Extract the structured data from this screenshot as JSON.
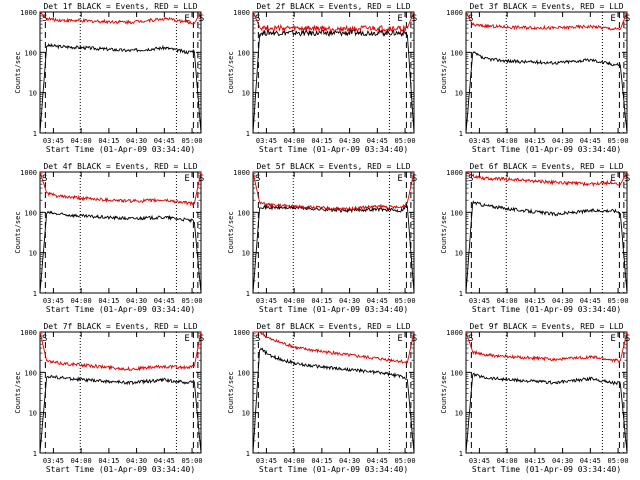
{
  "figure": {
    "xlabel": "Start Time (01-Apr-09 03:34:40)",
    "ylabel": "Counts/sec",
    "x_ticks": [
      "03:45",
      "04:00",
      "04:15",
      "04:30",
      "04:45",
      "05:00"
    ],
    "y_ticks": [
      "1",
      "10",
      "100",
      "1000"
    ],
    "colors": {
      "events": "#000000",
      "lld": "#e00000"
    }
  },
  "chart_data": [
    {
      "type": "line",
      "title": "Det 1f BLACK = Events, RED = LLD",
      "x_range_min": [
        0,
        36
      ],
      "y_range": [
        1,
        1000
      ],
      "y_scale": "log",
      "event_labels": {
        "left": "S",
        "right_1": "E",
        "right_2": "S"
      },
      "x_min": [
        0,
        1.5,
        4,
        10,
        20,
        28,
        33,
        34.5,
        36
      ],
      "series": [
        {
          "name": "BLACK = Events",
          "values": [
            1,
            150,
            140,
            130,
            110,
            130,
            100,
            110,
            1
          ]
        },
        {
          "name": "RED = LLD",
          "values": [
            1000,
            680,
            630,
            600,
            560,
            680,
            560,
            520,
            1000
          ]
        }
      ]
    },
    {
      "type": "line",
      "title": "Det 2f BLACK = Events, RED = LLD",
      "x_range_min": [
        0,
        36
      ],
      "y_range": [
        1,
        1000
      ],
      "y_scale": "log",
      "event_labels": {
        "left": "S",
        "right_1": "E",
        "right_2": "S"
      },
      "x_min": [
        0,
        1.5,
        4,
        10,
        20,
        28,
        33,
        34.5,
        36
      ],
      "series": [
        {
          "name": "BLACK = Events",
          "values": [
            1,
            300,
            310,
            300,
            300,
            310,
            300,
            300,
            1
          ]
        },
        {
          "name": "RED = LLD",
          "values": [
            1000,
            420,
            400,
            390,
            380,
            390,
            380,
            400,
            1000
          ]
        }
      ]
    },
    {
      "type": "line",
      "title": "Det 3f BLACK = Events, RED = LLD",
      "x_range_min": [
        0,
        36
      ],
      "y_range": [
        1,
        1000
      ],
      "y_scale": "log",
      "event_labels": {
        "left": "S",
        "right_1": "E",
        "right_2": "S"
      },
      "x_min": [
        0,
        1.5,
        4,
        10,
        20,
        28,
        33,
        34.5,
        36
      ],
      "series": [
        {
          "name": "BLACK = Events",
          "values": [
            1,
            100,
            70,
            60,
            55,
            65,
            50,
            50,
            1
          ]
        },
        {
          "name": "RED = LLD",
          "values": [
            1000,
            480,
            450,
            420,
            400,
            440,
            380,
            370,
            1000
          ]
        }
      ]
    },
    {
      "type": "line",
      "title": "Det 4f BLACK = Events, RED = LLD",
      "x_range_min": [
        0,
        36
      ],
      "y_range": [
        1,
        1000
      ],
      "y_scale": "log",
      "event_labels": {
        "left": "S",
        "right_1": "E",
        "right_2": "S"
      },
      "x_min": [
        0,
        1.5,
        4,
        10,
        20,
        28,
        33,
        34.5,
        36
      ],
      "series": [
        {
          "name": "BLACK = Events",
          "values": [
            1,
            100,
            90,
            80,
            70,
            75,
            65,
            60,
            1
          ]
        },
        {
          "name": "RED = LLD",
          "values": [
            1000,
            300,
            250,
            220,
            190,
            200,
            170,
            160,
            1000
          ]
        }
      ]
    },
    {
      "type": "line",
      "title": "Det 5f BLACK = Events, RED = LLD",
      "x_range_min": [
        0,
        36
      ],
      "y_range": [
        1,
        1000
      ],
      "y_scale": "log",
      "event_labels": {
        "left": "S",
        "right_1": "E",
        "right_2": "S"
      },
      "x_min": [
        0,
        1.5,
        4,
        10,
        20,
        28,
        33,
        34.5,
        36
      ],
      "series": [
        {
          "name": "BLACK = Events",
          "values": [
            1,
            140,
            130,
            130,
            110,
            120,
            110,
            150,
            1
          ]
        },
        {
          "name": "RED = LLD",
          "values": [
            1000,
            170,
            150,
            140,
            120,
            140,
            130,
            170,
            1000
          ]
        }
      ]
    },
    {
      "type": "line",
      "title": "Det 6f BLACK = Events, RED = LLD",
      "x_range_min": [
        0,
        36
      ],
      "y_range": [
        1,
        1000
      ],
      "y_scale": "log",
      "event_labels": {
        "left": "S",
        "right_1": "E",
        "right_2": "S"
      },
      "x_min": [
        0,
        1.5,
        4,
        10,
        20,
        28,
        33,
        34.5,
        36
      ],
      "series": [
        {
          "name": "BLACK = Events",
          "values": [
            1,
            180,
            150,
            120,
            90,
            110,
            110,
            100,
            1
          ]
        },
        {
          "name": "RED = LLD",
          "values": [
            1000,
            800,
            700,
            650,
            550,
            500,
            560,
            480,
            1000
          ]
        }
      ]
    },
    {
      "type": "line",
      "title": "Det 7f BLACK = Events, RED = LLD",
      "x_range_min": [
        0,
        36
      ],
      "y_range": [
        1,
        1000
      ],
      "y_scale": "log",
      "event_labels": {
        "left": "S",
        "right_1": "E",
        "right_2": "S"
      },
      "x_min": [
        0,
        1.5,
        4,
        10,
        20,
        28,
        33,
        34.5,
        36
      ],
      "series": [
        {
          "name": "BLACK = Events",
          "values": [
            1,
            80,
            75,
            65,
            55,
            65,
            55,
            60,
            1
          ]
        },
        {
          "name": "RED = LLD",
          "values": [
            1000,
            190,
            170,
            150,
            120,
            140,
            130,
            140,
            1000
          ]
        }
      ]
    },
    {
      "type": "line",
      "title": "Det 8f BLACK = Events, RED = LLD",
      "x_range_min": [
        0,
        36
      ],
      "y_range": [
        1,
        1000
      ],
      "y_scale": "log",
      "event_labels": {
        "left": "S",
        "right_1": "E",
        "right_2": "S"
      },
      "x_min": [
        0,
        1.5,
        4,
        10,
        20,
        28,
        33,
        34.5,
        36
      ],
      "series": [
        {
          "name": "BLACK = Events",
          "values": [
            1,
            400,
            250,
            160,
            120,
            100,
            80,
            70,
            1
          ]
        },
        {
          "name": "RED = LLD",
          "values": [
            1000,
            1000,
            650,
            400,
            280,
            220,
            190,
            170,
            1000
          ]
        }
      ]
    },
    {
      "type": "line",
      "title": "Det 9f BLACK = Events, RED = LLD",
      "x_range_min": [
        0,
        36
      ],
      "y_range": [
        1,
        1000
      ],
      "y_scale": "log",
      "event_labels": {
        "left": "S",
        "right_1": "E",
        "right_2": "S"
      },
      "x_min": [
        0,
        1.5,
        4,
        10,
        20,
        28,
        33,
        34.5,
        36
      ],
      "series": [
        {
          "name": "BLACK = Events",
          "values": [
            1,
            90,
            75,
            65,
            55,
            70,
            55,
            55,
            1
          ]
        },
        {
          "name": "RED = LLD",
          "values": [
            1000,
            320,
            270,
            240,
            210,
            240,
            200,
            190,
            1000
          ]
        }
      ]
    }
  ]
}
